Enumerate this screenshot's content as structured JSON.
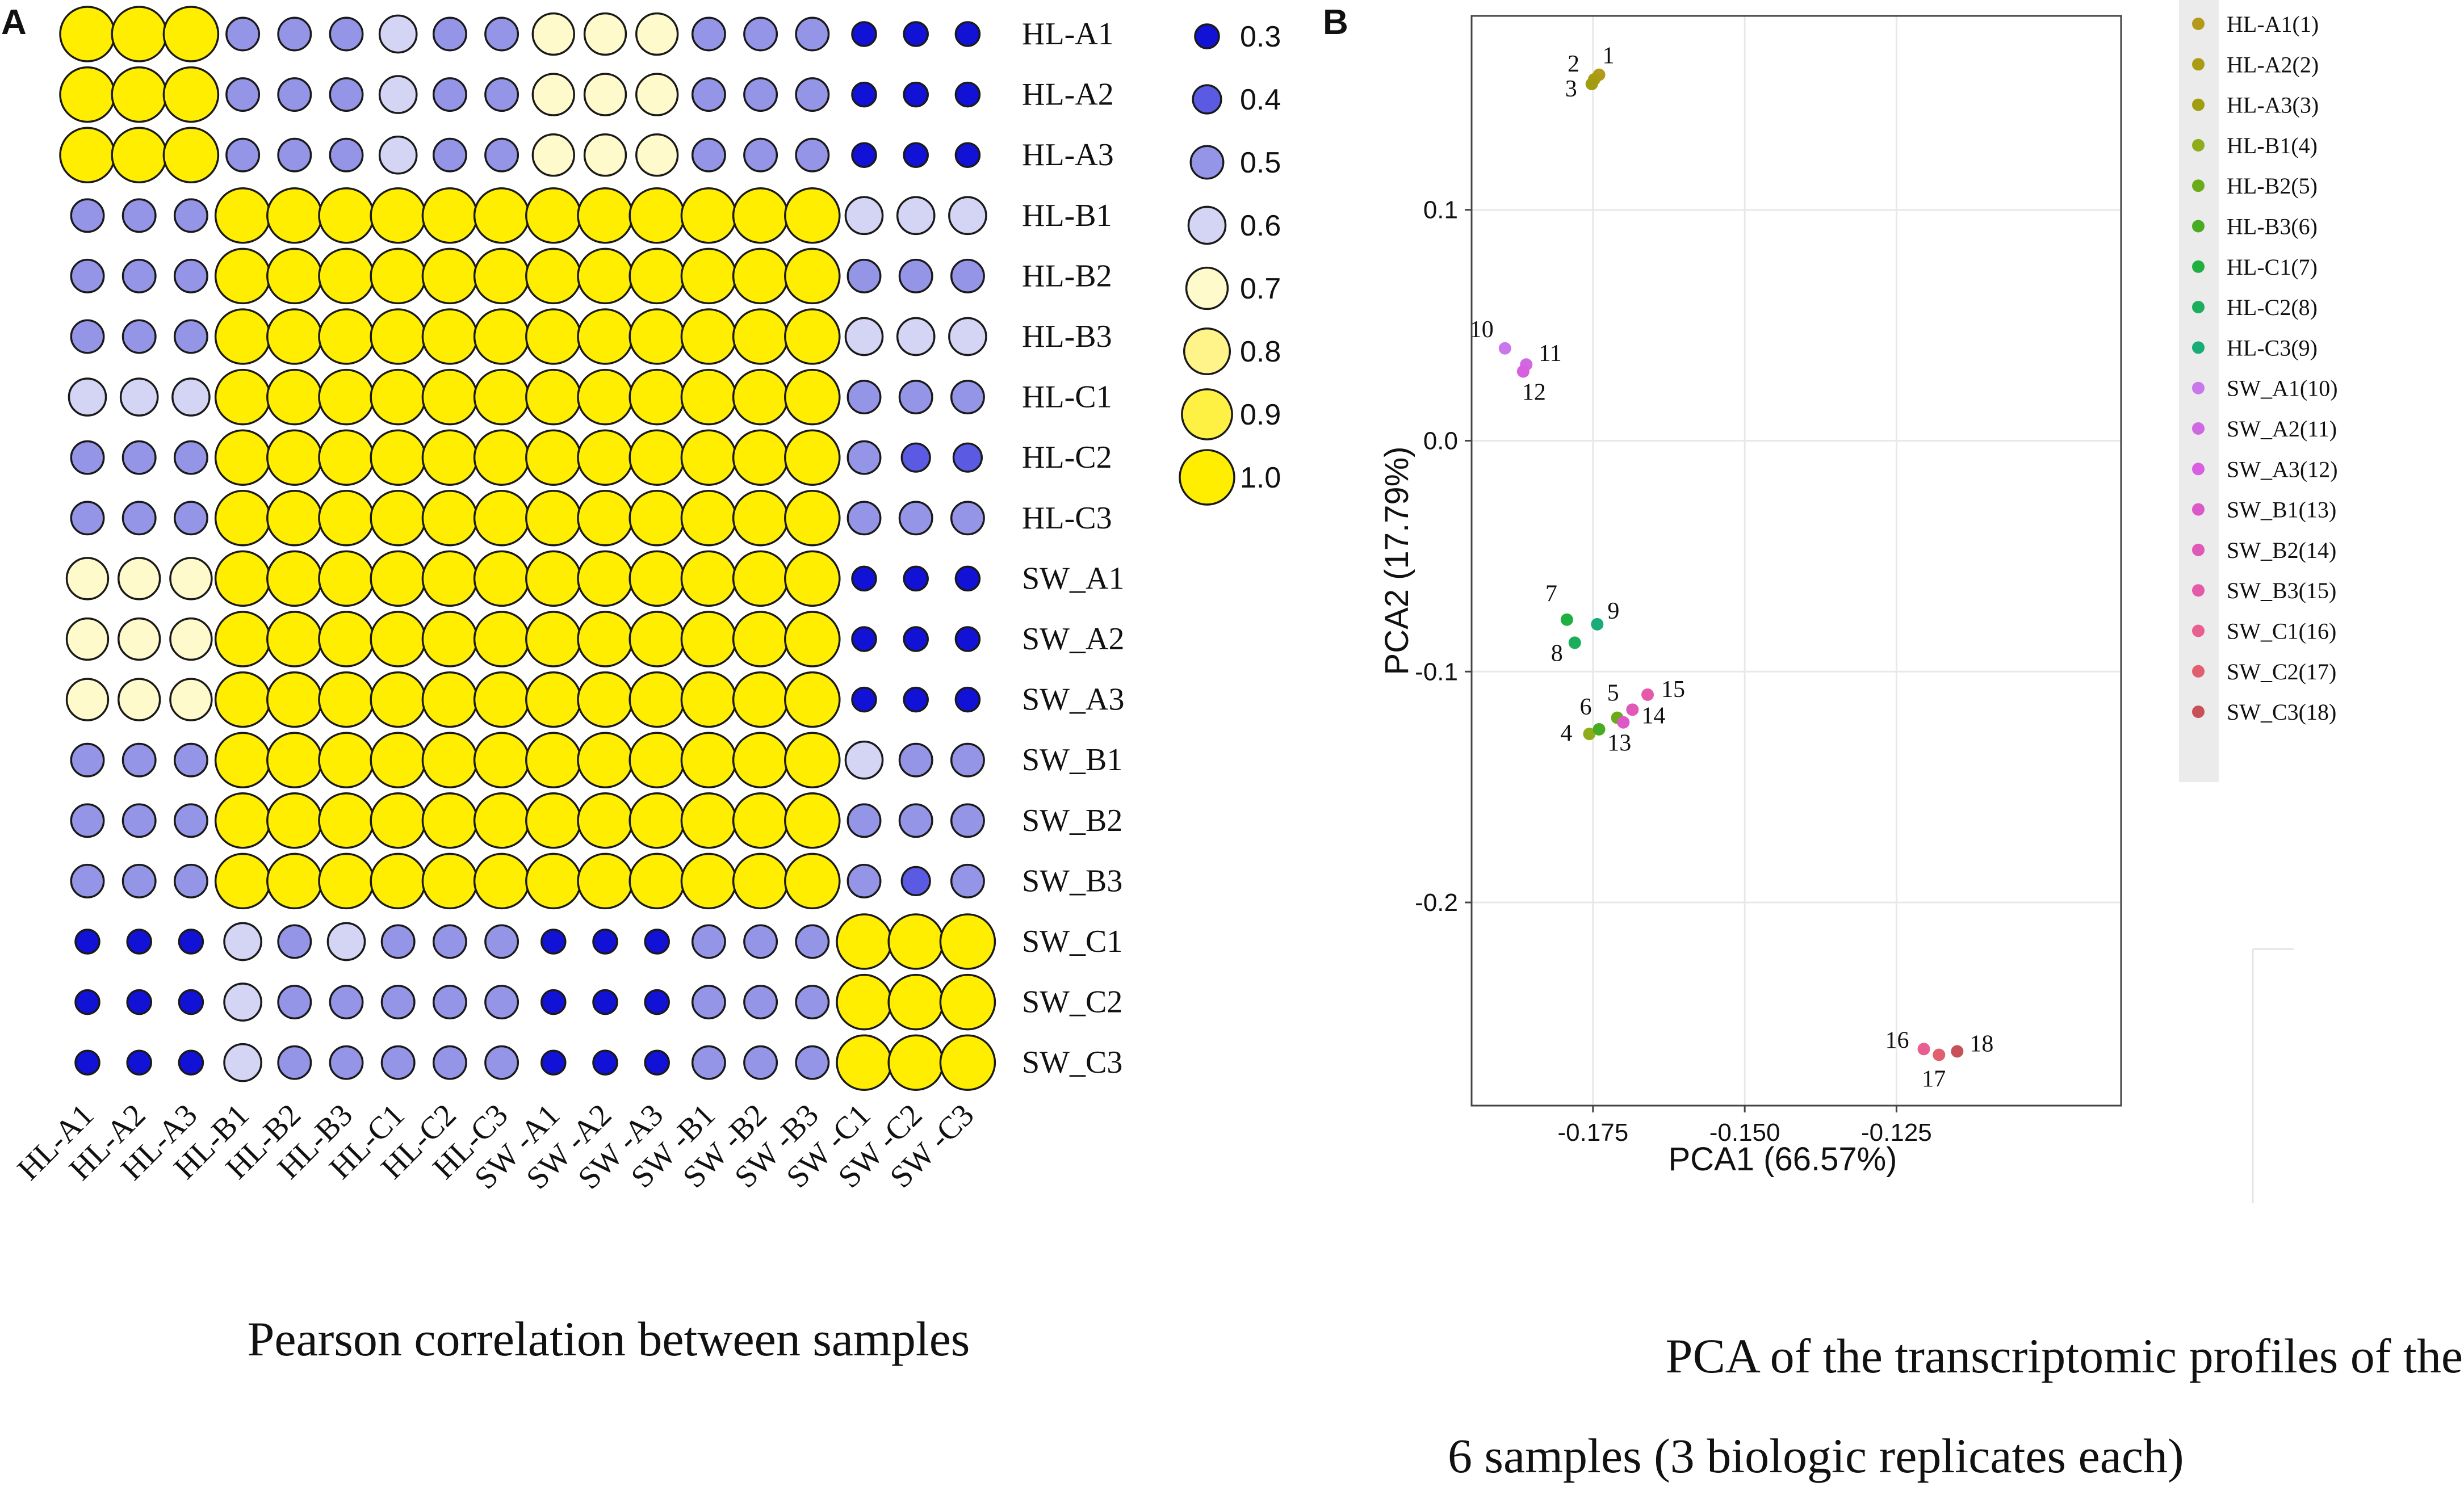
{
  "chart_data": [
    {
      "panel": "A",
      "type": "heatmap",
      "title": "Pearson correlation between samples",
      "samples": [
        "HL-A1",
        "HL-A2",
        "HL-A3",
        "HL-B1",
        "HL-B2",
        "HL-B3",
        "HL-C1",
        "HL-C2",
        "HL-C3",
        "SW_A1",
        "SW_A2",
        "SW_A3",
        "SW_B1",
        "SW_B2",
        "SW_B3",
        "SW_C1",
        "SW_C2",
        "SW_C3"
      ],
      "x_labels": [
        "HL-A1",
        "HL-A2",
        "HL-A3",
        "HL-B1",
        "HL-B2",
        "HL-B3",
        "HL-C1",
        "HL-C2",
        "HL-C3",
        "SW -A1",
        "SW -A2",
        "SW -A3",
        "SW -B1",
        "SW -B2",
        "SW -B3",
        "SW -C1",
        "SW -C2",
        "SW -C3"
      ],
      "values": [
        [
          1.0,
          1.0,
          1.0,
          0.5,
          0.5,
          0.5,
          0.6,
          0.5,
          0.5,
          0.7,
          0.7,
          0.7,
          0.5,
          0.5,
          0.5,
          0.3,
          0.3,
          0.3
        ],
        [
          1.0,
          1.0,
          1.0,
          0.5,
          0.5,
          0.5,
          0.6,
          0.5,
          0.5,
          0.7,
          0.7,
          0.7,
          0.5,
          0.5,
          0.5,
          0.3,
          0.3,
          0.3
        ],
        [
          1.0,
          1.0,
          1.0,
          0.5,
          0.5,
          0.5,
          0.6,
          0.5,
          0.5,
          0.7,
          0.7,
          0.7,
          0.5,
          0.5,
          0.5,
          0.3,
          0.3,
          0.3
        ],
        [
          0.5,
          0.5,
          0.5,
          1.0,
          1.0,
          1.0,
          1.0,
          1.0,
          1.0,
          1.0,
          1.0,
          1.0,
          1.0,
          1.0,
          1.0,
          0.6,
          0.6,
          0.6
        ],
        [
          0.5,
          0.5,
          0.5,
          1.0,
          1.0,
          1.0,
          1.0,
          1.0,
          1.0,
          1.0,
          1.0,
          1.0,
          1.0,
          1.0,
          1.0,
          0.5,
          0.5,
          0.5
        ],
        [
          0.5,
          0.5,
          0.5,
          1.0,
          1.0,
          1.0,
          1.0,
          1.0,
          1.0,
          1.0,
          1.0,
          1.0,
          1.0,
          1.0,
          1.0,
          0.6,
          0.6,
          0.6
        ],
        [
          0.6,
          0.6,
          0.6,
          1.0,
          1.0,
          1.0,
          1.0,
          1.0,
          1.0,
          1.0,
          1.0,
          1.0,
          1.0,
          1.0,
          1.0,
          0.5,
          0.5,
          0.5
        ],
        [
          0.5,
          0.5,
          0.5,
          1.0,
          1.0,
          1.0,
          1.0,
          1.0,
          1.0,
          1.0,
          1.0,
          1.0,
          1.0,
          1.0,
          1.0,
          0.5,
          0.4,
          0.4
        ],
        [
          0.5,
          0.5,
          0.5,
          1.0,
          1.0,
          1.0,
          1.0,
          1.0,
          1.0,
          1.0,
          1.0,
          1.0,
          1.0,
          1.0,
          1.0,
          0.5,
          0.5,
          0.5
        ],
        [
          0.7,
          0.7,
          0.7,
          1.0,
          1.0,
          1.0,
          1.0,
          1.0,
          1.0,
          1.0,
          1.0,
          1.0,
          1.0,
          1.0,
          1.0,
          0.3,
          0.3,
          0.3
        ],
        [
          0.7,
          0.7,
          0.7,
          1.0,
          1.0,
          1.0,
          1.0,
          1.0,
          1.0,
          1.0,
          1.0,
          1.0,
          1.0,
          1.0,
          1.0,
          0.3,
          0.3,
          0.3
        ],
        [
          0.7,
          0.7,
          0.7,
          1.0,
          1.0,
          1.0,
          1.0,
          1.0,
          1.0,
          1.0,
          1.0,
          1.0,
          1.0,
          1.0,
          1.0,
          0.3,
          0.3,
          0.3
        ],
        [
          0.5,
          0.5,
          0.5,
          1.0,
          1.0,
          1.0,
          1.0,
          1.0,
          1.0,
          1.0,
          1.0,
          1.0,
          1.0,
          1.0,
          1.0,
          0.6,
          0.5,
          0.5
        ],
        [
          0.5,
          0.5,
          0.5,
          1.0,
          1.0,
          1.0,
          1.0,
          1.0,
          1.0,
          1.0,
          1.0,
          1.0,
          1.0,
          1.0,
          1.0,
          0.5,
          0.5,
          0.5
        ],
        [
          0.5,
          0.5,
          0.5,
          1.0,
          1.0,
          1.0,
          1.0,
          1.0,
          1.0,
          1.0,
          1.0,
          1.0,
          1.0,
          1.0,
          1.0,
          0.5,
          0.4,
          0.5
        ],
        [
          0.3,
          0.3,
          0.3,
          0.6,
          0.5,
          0.6,
          0.5,
          0.5,
          0.5,
          0.3,
          0.3,
          0.3,
          0.5,
          0.5,
          0.5,
          1.0,
          1.0,
          1.0
        ],
        [
          0.3,
          0.3,
          0.3,
          0.6,
          0.5,
          0.5,
          0.5,
          0.5,
          0.5,
          0.3,
          0.3,
          0.3,
          0.5,
          0.5,
          0.5,
          1.0,
          1.0,
          1.0
        ],
        [
          0.3,
          0.3,
          0.3,
          0.6,
          0.5,
          0.5,
          0.5,
          0.5,
          0.5,
          0.3,
          0.3,
          0.3,
          0.5,
          0.5,
          0.5,
          1.0,
          1.0,
          1.0
        ]
      ],
      "legend": {
        "values": [
          0.3,
          0.4,
          0.5,
          0.6,
          0.7,
          0.8,
          0.9,
          1.0
        ],
        "labels": [
          "0.3",
          "0.4",
          "0.5",
          "0.6",
          "0.7",
          "0.8",
          "0.9",
          "1.0"
        ],
        "colors": [
          "#1212d6",
          "#5a5ae2",
          "#9595e8",
          "#d4d4f4",
          "#fffacc",
          "#fff48a",
          "#fff044",
          "#ffee00"
        ]
      }
    },
    {
      "panel": "B",
      "type": "scatter",
      "title": "PCA of the transcriptomic profiles of the 6 samples (3 biologic replicates each)",
      "title_lines": [
        "PCA of the transcriptomic profiles of the",
        "6 samples (3 biologic replicates each)"
      ],
      "xlabel": "PCA1 (66.57%)",
      "ylabel": "PCA2 (17.79%)",
      "xlim": [
        -0.195,
        -0.088
      ],
      "ylim": [
        -0.288,
        0.184
      ],
      "xticks": [
        -0.175,
        -0.15,
        -0.125
      ],
      "xtick_labels": [
        "-0.175",
        "-0.150",
        "-0.125"
      ],
      "yticks": [
        0.1,
        0.0,
        -0.1,
        -0.2
      ],
      "ytick_labels": [
        "0.1",
        "0.0",
        "-0.1",
        "-0.2"
      ],
      "grid": true,
      "legend_position": "right",
      "points": [
        {
          "label": "1",
          "name": "HL-A1(1)",
          "x": -0.174,
          "y": 0.1585,
          "color": "#b49a1a",
          "lx": 6,
          "ly": -20,
          "anchor": "start"
        },
        {
          "label": "2",
          "name": "HL-A2(2)",
          "x": -0.1748,
          "y": 0.1565,
          "color": "#aa9c12",
          "lx": -26,
          "ly": -14,
          "anchor": "end"
        },
        {
          "label": "3",
          "name": "HL-A3(3)",
          "x": -0.1752,
          "y": 0.1545,
          "color": "#a09e10",
          "lx": -26,
          "ly": 22,
          "anchor": "end"
        },
        {
          "label": "4",
          "name": "HL-B1(4)",
          "x": -0.1756,
          "y": -0.127,
          "color": "#8fac1a",
          "lx": -30,
          "ly": 12,
          "anchor": "end"
        },
        {
          "label": "5",
          "name": "HL-B2(5)",
          "x": -0.171,
          "y": -0.12,
          "color": "#6aac18",
          "lx": -18,
          "ly": -30,
          "anchor": "start"
        },
        {
          "label": "6",
          "name": "HL-B3(6)",
          "x": -0.174,
          "y": -0.125,
          "color": "#48ac22",
          "lx": -34,
          "ly": -26,
          "anchor": "start"
        },
        {
          "label": "7",
          "name": "HL-C1(7)",
          "x": -0.1793,
          "y": -0.0775,
          "color": "#20b040",
          "lx": -38,
          "ly": -32,
          "anchor": "start"
        },
        {
          "label": "8",
          "name": "HL-C2(8)",
          "x": -0.178,
          "y": -0.0875,
          "color": "#1cae5c",
          "lx": -42,
          "ly": 32,
          "anchor": "start"
        },
        {
          "label": "9",
          "name": "HL-C3(9)",
          "x": -0.1743,
          "y": -0.0795,
          "color": "#18ac76",
          "lx": 18,
          "ly": -10,
          "anchor": "start"
        },
        {
          "label": "10",
          "name": "SW_A1(10)",
          "x": -0.1895,
          "y": 0.04,
          "color": "#c878ea",
          "lx": -20,
          "ly": -20,
          "anchor": "end"
        },
        {
          "label": "11",
          "name": "SW_A2(11)",
          "x": -0.186,
          "y": 0.033,
          "color": "#d068e2",
          "lx": 22,
          "ly": -6,
          "anchor": "start"
        },
        {
          "label": "12",
          "name": "SW_A3(12)",
          "x": -0.1865,
          "y": 0.03,
          "color": "#d860e0",
          "lx": -2,
          "ly": 50,
          "anchor": "start"
        },
        {
          "label": "13",
          "name": "SW_B1(13)",
          "x": -0.17,
          "y": -0.122,
          "color": "#dc58c8",
          "lx": -28,
          "ly": 50,
          "anchor": "start"
        },
        {
          "label": "14",
          "name": "SW_B2(14)",
          "x": -0.1685,
          "y": -0.1165,
          "color": "#e058b8",
          "lx": 16,
          "ly": 24,
          "anchor": "start"
        },
        {
          "label": "15",
          "name": "SW_B3(15)",
          "x": -0.166,
          "y": -0.11,
          "color": "#e45aa8",
          "lx": 24,
          "ly": 4,
          "anchor": "start"
        },
        {
          "label": "16",
          "name": "SW_C1(16)",
          "x": -0.1205,
          "y": -0.2635,
          "color": "#e86090",
          "lx": -26,
          "ly": -2,
          "anchor": "end"
        },
        {
          "label": "17",
          "name": "SW_C2(17)",
          "x": -0.118,
          "y": -0.266,
          "color": "#e0606e",
          "lx": -30,
          "ly": 56,
          "anchor": "start"
        },
        {
          "label": "18",
          "name": "SW_C3(18)",
          "x": -0.115,
          "y": -0.2645,
          "color": "#c85058",
          "lx": 22,
          "ly": 0,
          "anchor": "start"
        }
      ]
    }
  ],
  "panels": {
    "a_letter": "A",
    "b_letter": "B"
  }
}
